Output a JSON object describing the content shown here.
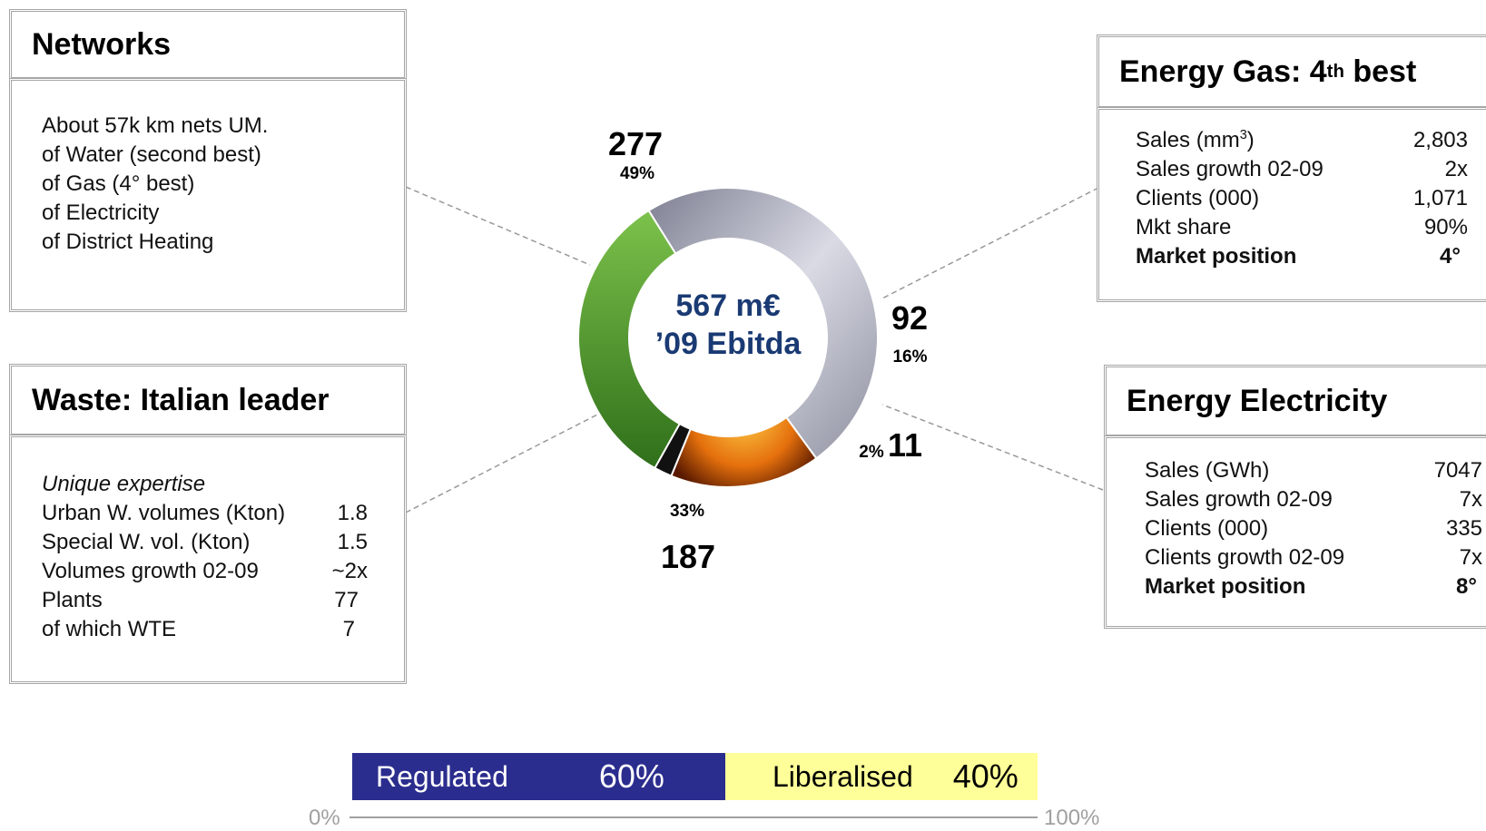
{
  "networks": {
    "title": "Networks",
    "lines": [
      "About 57k km nets UM.",
      "of Water (second best)",
      "of Gas (4° best)",
      "of Electricity",
      "of District Heating"
    ]
  },
  "waste": {
    "title": "Waste: Italian leader",
    "subtitle": "Unique expertise",
    "rows": [
      {
        "label": "Urban W. volumes (Kton)",
        "value": "1.8"
      },
      {
        "label": "Special W. vol. (Kton)",
        "value": "1.5"
      },
      {
        "label": "Volumes growth 02-09",
        "value": "~2x"
      },
      {
        "label": "Plants",
        "value": "77"
      },
      {
        "label": "of which WTE",
        "value": "7"
      }
    ]
  },
  "gas": {
    "title_main": "Energy Gas: 4",
    "title_sup": "th",
    "title_end": " best",
    "rows": [
      {
        "label": "Sales (mm",
        "sup": "3",
        "label_end": ")",
        "value": "2,803"
      },
      {
        "label": "Sales growth 02-09",
        "value": "2x"
      },
      {
        "label": "Clients (000)",
        "value": "1,071"
      },
      {
        "label": "Mkt share",
        "value": "90%"
      }
    ],
    "position": {
      "label": "Market position",
      "value": "4°"
    }
  },
  "electricity": {
    "title": "Energy Electricity",
    "rows": [
      {
        "label": "Sales (GWh)",
        "value": "7047"
      },
      {
        "label": "Sales growth 02-09",
        "value": "7x"
      },
      {
        "label": "Clients (000)",
        "value": "335"
      },
      {
        "label": "Clients growth 02-09",
        "value": "7x"
      }
    ],
    "position": {
      "label": "Market position",
      "value": "8°"
    }
  },
  "chart_data": {
    "type": "pie",
    "center_line1": "567 m€",
    "center_line2": "’09 Ebitda",
    "slices": [
      {
        "label": "Networks",
        "value": 277,
        "value_text": "277",
        "pct_text": "49%",
        "color": "#a8a9b8"
      },
      {
        "label": "Energy Gas",
        "value": 92,
        "value_text": "92",
        "pct_text": "16%",
        "color": "#e07a10"
      },
      {
        "label": "Energy Electricity",
        "value": 11,
        "value_text": "11",
        "pct_text": "2%",
        "color": "#111111"
      },
      {
        "label": "Waste",
        "value": 187,
        "value_text": "187",
        "pct_text": "33%",
        "color": "#4f9a2c"
      }
    ]
  },
  "split_bar": {
    "regulated": {
      "label": "Regulated",
      "pct_text": "60%",
      "value": 60,
      "color": "#2b2d8e"
    },
    "liberalised": {
      "label": "Liberalised",
      "pct_text": "40%",
      "value": 40,
      "color": "#ffff99"
    },
    "axis_min": "0%",
    "axis_max": "100%"
  }
}
